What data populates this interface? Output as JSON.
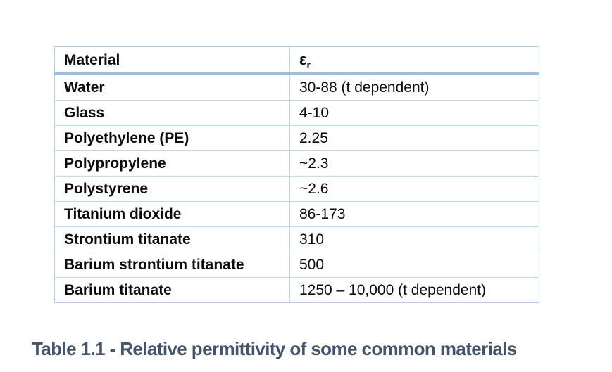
{
  "table": {
    "header": {
      "material_label": "Material",
      "value_symbol": "ε",
      "value_symbol_sub": "r"
    },
    "rows": [
      {
        "material": "Water",
        "value": "30-88 (t dependent)"
      },
      {
        "material": "Glass",
        "value": "4-10"
      },
      {
        "material": "Polyethylene (PE)",
        "value": "2.25"
      },
      {
        "material": "Polypropylene",
        "value": "~2.3"
      },
      {
        "material": "Polystyrene",
        "value": "~2.6"
      },
      {
        "material": "Titanium dioxide",
        "value": "86-173"
      },
      {
        "material": "Strontium titanate",
        "value": "310"
      },
      {
        "material": "Barium strontium titanate",
        "value": "500"
      },
      {
        "material": "Barium titanate",
        "value": "1250 – 10,000 (t dependent)"
      }
    ],
    "colors": {
      "outer_border": "#b3cfe9",
      "row_divider": "#bdd7ee",
      "header_underline": "#98bfe2"
    }
  },
  "caption": {
    "text": "Table 1.1 - Relative permittivity of some common materials",
    "color": "#44546a"
  }
}
